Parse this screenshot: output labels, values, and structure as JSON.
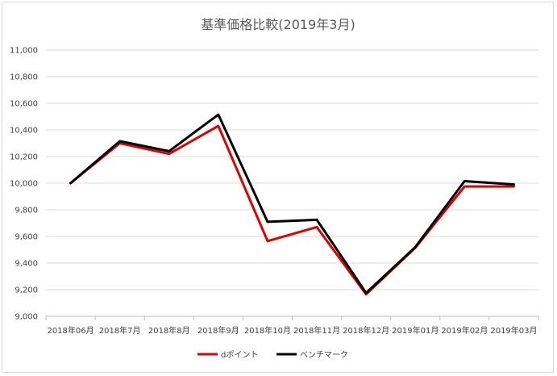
{
  "chart_data": {
    "type": "line",
    "title": "基準価格比較(2019年3月)",
    "xlabel": "",
    "ylabel": "",
    "categories": [
      "2018年06月",
      "2018年7月",
      "2018年8月",
      "2018年9月",
      "2018年10月",
      "2018年11月",
      "2018年12月",
      "2019年01月",
      "2019年02月",
      "2019年03月"
    ],
    "ylim": [
      9000,
      11000
    ],
    "yticks": [
      9000,
      9200,
      9400,
      9600,
      9800,
      10000,
      10200,
      10400,
      10600,
      10800,
      11000
    ],
    "ytick_labels": [
      "9,000",
      "9,200",
      "9,400",
      "9,600",
      "9,800",
      "10,000",
      "10,200",
      "10,400",
      "10,600",
      "10,800",
      "11,000"
    ],
    "grid": true,
    "legend_position": "bottom",
    "series": [
      {
        "name": "dポイント",
        "color": "#e00000",
        "values": [
          10000,
          10300,
          10220,
          10430,
          9565,
          9670,
          9165,
          9515,
          9975,
          9975
        ]
      },
      {
        "name": "ベンチマーク",
        "color": "#000000",
        "values": [
          10000,
          10315,
          10240,
          10515,
          9710,
          9725,
          9175,
          9520,
          10015,
          9990
        ]
      }
    ]
  }
}
